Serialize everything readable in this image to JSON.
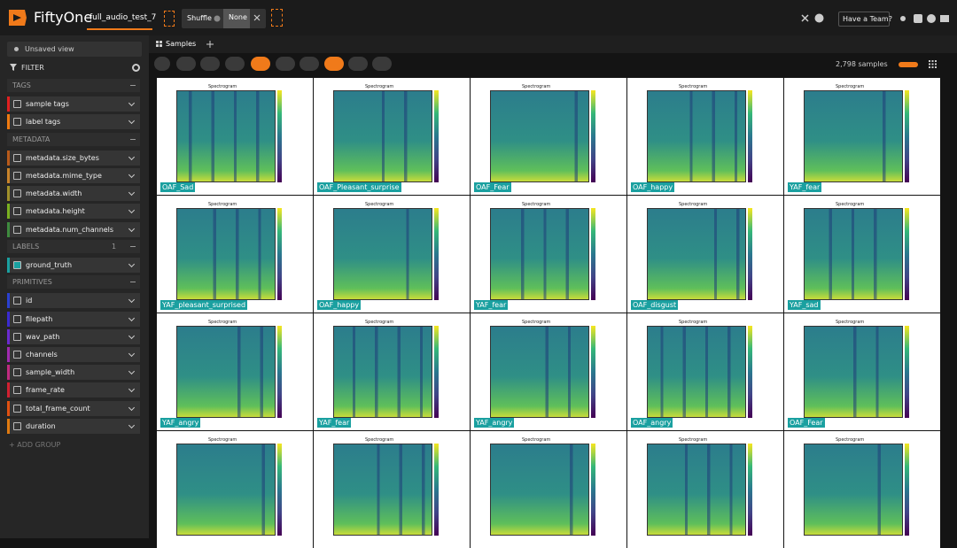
{
  "header": {
    "app_name": "FiftyOne",
    "dataset": "full_audio_test_7",
    "shuffle": "Shuffle",
    "shuffle_value": "None",
    "team": "Have a Team?"
  },
  "tabs": {
    "samples": "Samples"
  },
  "sidebar": {
    "view": "Unsaved view",
    "filter": "FILTER",
    "labels_count": "1",
    "add_group": "+ ADD GROUP",
    "groups": [
      {
        "title": "TAGS",
        "fields": [
          {
            "name": "sample tags",
            "color": "#e02020",
            "checked": false
          },
          {
            "name": "label tags",
            "color": "#f07a10",
            "checked": false
          }
        ]
      },
      {
        "title": "METADATA",
        "fields": [
          {
            "name": "metadata.size_bytes",
            "color": "#b85a1a",
            "checked": false
          },
          {
            "name": "metadata.mime_type",
            "color": "#c8832a",
            "checked": false
          },
          {
            "name": "metadata.width",
            "color": "#a0902a",
            "checked": false
          },
          {
            "name": "metadata.height",
            "color": "#7ab020",
            "checked": false
          },
          {
            "name": "metadata.num_channels",
            "color": "#3e8a3e",
            "checked": false
          }
        ]
      },
      {
        "title": "LABELS",
        "fields": [
          {
            "name": "ground_truth",
            "color": "#1aa0a0",
            "checked": true
          }
        ]
      },
      {
        "title": "PRIMITIVES",
        "fields": [
          {
            "name": "id",
            "color": "#2a40d0",
            "checked": false
          },
          {
            "name": "filepath",
            "color": "#3a2ad0",
            "checked": false
          },
          {
            "name": "wav_path",
            "color": "#6a2ad0",
            "checked": false
          },
          {
            "name": "channels",
            "color": "#a02ab0",
            "checked": false
          },
          {
            "name": "sample_width",
            "color": "#c02a80",
            "checked": false
          },
          {
            "name": "frame_rate",
            "color": "#d02030",
            "checked": false
          },
          {
            "name": "total_frame_count",
            "color": "#e05010",
            "checked": false
          },
          {
            "name": "duration",
            "color": "#e07a10",
            "checked": false
          }
        ]
      }
    ]
  },
  "toolbar": {
    "count": "2,798 samples"
  },
  "grid": {
    "plot_title": "Spectrogram",
    "samples": [
      {
        "label": "OAF_Sad"
      },
      {
        "label": "OAF_Pleasant_surprise"
      },
      {
        "label": "OAF_Fear"
      },
      {
        "label": "OAF_happy"
      },
      {
        "label": "YAF_fear"
      },
      {
        "label": "YAF_pleasant_surprised"
      },
      {
        "label": "OAF_happy"
      },
      {
        "label": "YAF_fear"
      },
      {
        "label": "OAF_disgust"
      },
      {
        "label": "YAF_sad"
      },
      {
        "label": "YAF_angry"
      },
      {
        "label": "YAF_fear"
      },
      {
        "label": "YAF_angry"
      },
      {
        "label": "OAF_angry"
      },
      {
        "label": "OAF_Fear"
      }
    ]
  }
}
